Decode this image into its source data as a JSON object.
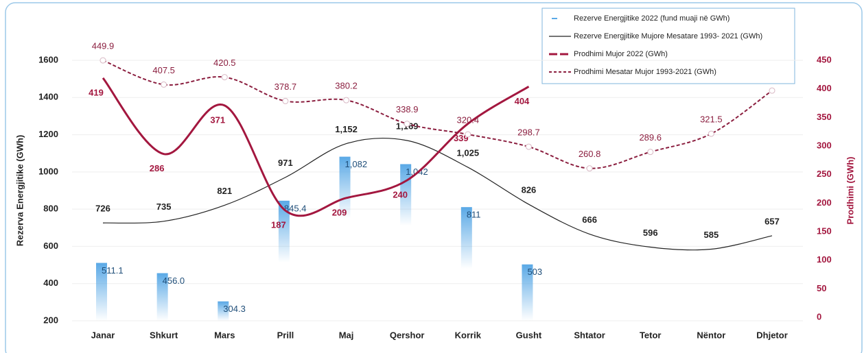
{
  "chart_data": {
    "type": "combo",
    "categories": [
      "Janar",
      "Shkurt",
      "Mars",
      "Prill",
      "Maj",
      "Qershor",
      "Korrik",
      "Gusht",
      "Shtator",
      "Tetor",
      "Nëntor",
      "Dhjetor"
    ],
    "ylabel": "Rezerva Energjitike (GWh)",
    "y2label": "Prodhimi (GWh)",
    "ylim": [
      200,
      1600
    ],
    "yticks": [
      200,
      400,
      600,
      800,
      1000,
      1200,
      1400,
      1600
    ],
    "y2lim": [
      0,
      450
    ],
    "y2ticks": [
      0,
      50,
      100,
      150,
      200,
      250,
      300,
      350,
      400,
      450
    ],
    "grid": true,
    "legend": "top-right",
    "series": [
      {
        "name": "Rezerve Energjitike  2022 (fund muaji në GWh)",
        "type": "bar",
        "color": "#5aa9e6",
        "values": [
          511.1,
          456.0,
          304.3,
          845.4,
          1082,
          1042,
          811,
          503,
          null,
          null,
          null,
          null
        ],
        "value_labels": [
          "511.1",
          "456.0",
          "304.3",
          "845.4",
          "1,082",
          "1,042",
          "811",
          "503",
          null,
          null,
          null,
          null
        ]
      },
      {
        "name": "Rezerve Energjitike Mujore Mesatare 1993- 2021 (GWh)",
        "type": "line",
        "color": "#222222",
        "values": [
          726,
          735,
          821,
          971,
          1152,
          1169,
          1025,
          826,
          666,
          596,
          585,
          657
        ],
        "value_labels": [
          "726",
          "735",
          "821",
          "971",
          "1,152",
          "1,169",
          "1,025",
          "826",
          "666",
          "596",
          "585",
          "657"
        ]
      },
      {
        "name": "Prodhimi Mujor  2022 (GWh)",
        "type": "line",
        "axis": "y2",
        "color": "#a3173f",
        "values": [
          419,
          286,
          371,
          187,
          209,
          240,
          339,
          404,
          null,
          null,
          null,
          null
        ]
      },
      {
        "name": "Prodhimi Mesatar Mujor 1993-2021 (GWh)",
        "type": "line",
        "axis": "y2",
        "color": "#8b1e3f",
        "dashed": true,
        "values": [
          449.9,
          407.5,
          420.5,
          378.7,
          380.2,
          338.9,
          320.4,
          298.7,
          260.8,
          289.6,
          321.5,
          397
        ],
        "value_labels": [
          "449.9",
          "407.5",
          "420.5",
          "378.7",
          "380.2",
          "338.9",
          "320.4",
          "298.7",
          "260.8",
          "289.6",
          "321.5",
          null
        ]
      }
    ]
  }
}
